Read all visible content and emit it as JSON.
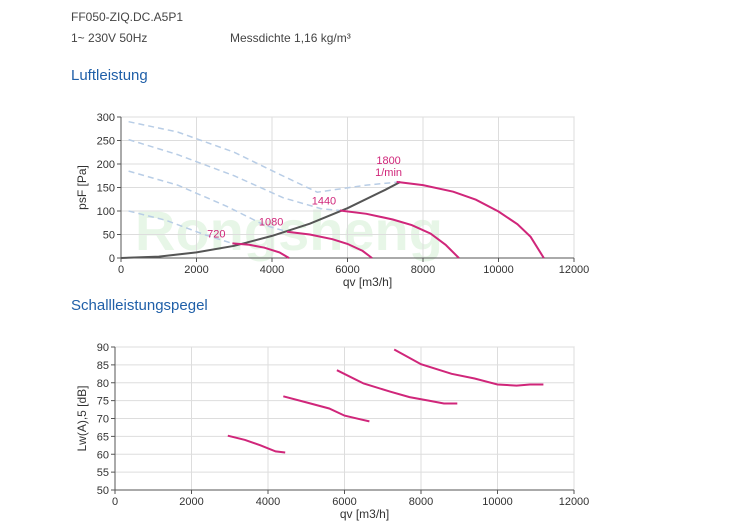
{
  "header": {
    "model": "FF050-ZIQ.DC.A5P1",
    "supply": "1~ 230V 50Hz",
    "density": "Messdichte 1,16 kg/m³"
  },
  "watermark": "Rongsheng",
  "colors": {
    "curve": "#d0267a",
    "system": "#555555",
    "dashed": "#b8cde6",
    "grid": "#dddddd",
    "title": "#1f5fa8"
  },
  "chart_data": [
    {
      "type": "line",
      "title": "Luftleistung",
      "xlabel": "qv [m3/h]",
      "ylabel": "psF [Pa]",
      "xlim": [
        0,
        12000
      ],
      "ylim": [
        0,
        300
      ],
      "xticks": [
        "0",
        "2000",
        "4000",
        "6000",
        "8000",
        "10000",
        "12000"
      ],
      "yticks": [
        "0",
        "50",
        "100",
        "150",
        "200",
        "250",
        "300"
      ],
      "grid": true,
      "series": [
        {
          "label": "720",
          "x": [
            2950,
            3400,
            3800,
            4200,
            4450
          ],
          "y": [
            31,
            28,
            22,
            12,
            0
          ]
        },
        {
          "label": "1080",
          "x": [
            4400,
            5000,
            5600,
            6000,
            6400,
            6650
          ],
          "y": [
            56,
            50,
            40,
            30,
            15,
            0
          ]
        },
        {
          "label": "1440",
          "x": [
            5800,
            6500,
            7200,
            7700,
            8200,
            8600,
            8950
          ],
          "y": [
            101,
            94,
            82,
            70,
            52,
            28,
            0
          ]
        },
        {
          "label": "1800",
          "label2": "1/min",
          "x": [
            7300,
            8000,
            8800,
            9400,
            10000,
            10500,
            10850,
            11200
          ],
          "y": [
            162,
            155,
            141,
            124,
            99,
            72,
            45,
            0
          ]
        }
      ],
      "system_curve": {
        "x": [
          0,
          1000,
          2000,
          3000,
          4000,
          5000,
          6000,
          7000,
          7400
        ],
        "y": [
          0,
          3,
          12,
          26,
          47,
          73,
          106,
          145,
          162
        ]
      },
      "dashed_curves": [
        {
          "x": [
            200,
            1500,
            3000,
            4200,
            5200,
            6500,
            7400
          ],
          "y": [
            290,
            268,
            225,
            178,
            140,
            155,
            162
          ]
        },
        {
          "x": [
            200,
            1500,
            3000,
            4300,
            5300,
            5800
          ],
          "y": [
            252,
            220,
            175,
            128,
            105,
            101
          ]
        },
        {
          "x": [
            200,
            1500,
            2800,
            3800,
            4400
          ],
          "y": [
            185,
            155,
            110,
            70,
            56
          ]
        },
        {
          "x": [
            200,
            1200,
            2200,
            2950
          ],
          "y": [
            100,
            80,
            50,
            31
          ]
        }
      ]
    },
    {
      "type": "line",
      "title": "Schallleistungspegel",
      "xlabel": "qv [m3/h]",
      "ylabel": "Lw(A),5 [dB]",
      "xlim": [
        0,
        12000
      ],
      "ylim": [
        50,
        90
      ],
      "xticks": [
        "0",
        "2000",
        "4000",
        "6000",
        "8000",
        "10000",
        "12000"
      ],
      "yticks": [
        "50",
        "55",
        "60",
        "65",
        "70",
        "75",
        "80",
        "85",
        "90"
      ],
      "grid": true,
      "series": [
        {
          "x": [
            2950,
            3400,
            3800,
            4200,
            4450
          ],
          "y": [
            65.2,
            64.0,
            62.5,
            60.8,
            60.5
          ]
        },
        {
          "x": [
            4400,
            5000,
            5600,
            6000,
            6400,
            6650
          ],
          "y": [
            76.2,
            74.5,
            72.8,
            70.8,
            69.8,
            69.2
          ]
        },
        {
          "x": [
            5800,
            6500,
            7200,
            7700,
            8200,
            8600,
            8950
          ],
          "y": [
            83.5,
            79.8,
            77.5,
            76.0,
            75.0,
            74.2,
            74.2
          ]
        },
        {
          "x": [
            7300,
            8000,
            8800,
            9400,
            10000,
            10500,
            10850,
            11200
          ],
          "y": [
            89.3,
            85.2,
            82.5,
            81.2,
            79.5,
            79.2,
            79.5,
            79.5
          ]
        }
      ]
    }
  ]
}
